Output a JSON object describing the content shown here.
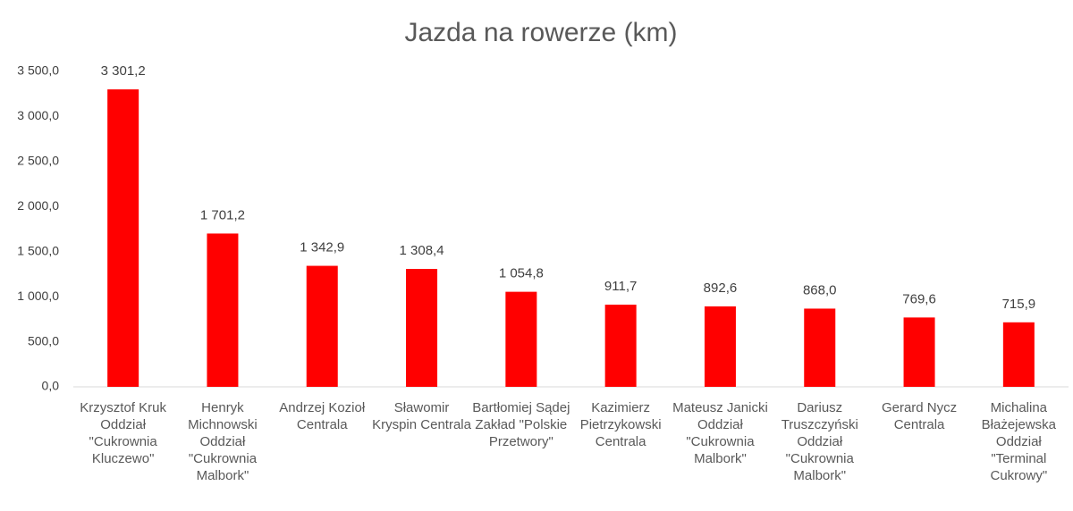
{
  "chart_data": {
    "type": "bar",
    "title": "Jazda na rowerze (km)",
    "categories": [
      "Krzysztof Kruk Oddział \"Cukrownia Kluczewo\"",
      "Henryk Michnowski Oddział \"Cukrownia Malbork\"",
      "Andrzej Kozioł Centrala",
      "Sławomir Kryspin Centrala",
      "Bartłomiej Sądej Zakład \"Polskie Przetwory\"",
      "Kazimierz Pietrzykowski Centrala",
      "Mateusz Janicki Oddział \"Cukrownia Malbork\"",
      "Dariusz Truszczyński Oddział \"Cukrownia Malbork\"",
      "Gerard Nycz Centrala",
      "Michalina Błażejewska Oddział \"Terminal Cukrowy\""
    ],
    "values": [
      3301.2,
      1701.2,
      1342.9,
      1308.4,
      1054.8,
      911.7,
      892.6,
      868.0,
      769.6,
      715.9
    ],
    "value_labels": [
      "3 301,2",
      "1 701,2",
      "1 342,9",
      "1 308,4",
      "1 054,8",
      "911,7",
      "892,6",
      "868,0",
      "769,6",
      "715,9"
    ],
    "color": "#ff0000",
    "ylim": [
      0,
      3500
    ],
    "yticks": [
      {
        "value": 0,
        "label": "0,0"
      },
      {
        "value": 500,
        "label": "500,0"
      },
      {
        "value": 1000,
        "label": "1 000,0"
      },
      {
        "value": 1500,
        "label": "1 500,0"
      },
      {
        "value": 2000,
        "label": "2 000,0"
      },
      {
        "value": 2500,
        "label": "2 500,0"
      },
      {
        "value": 3000,
        "label": "3 000,0"
      },
      {
        "value": 3500,
        "label": "3 500,0"
      }
    ],
    "grid": false
  }
}
